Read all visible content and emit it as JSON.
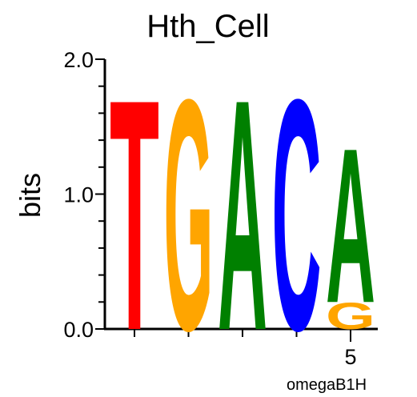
{
  "chart_data": {
    "type": "sequence-logo",
    "title": "Hth_Cell",
    "ylabel": "bits",
    "xlabel": "omegaB1H",
    "ylim": [
      0,
      2
    ],
    "y_tick_labels": [
      "0.0",
      "1.0",
      "2.0"
    ],
    "x_tick_labels": [
      {
        "position": 5,
        "label": "5"
      }
    ],
    "positions": [
      {
        "position": 1,
        "stack": [
          {
            "letter": "T",
            "bits": 1.76
          }
        ]
      },
      {
        "position": 2,
        "stack": [
          {
            "letter": "G",
            "bits": 1.76
          }
        ]
      },
      {
        "position": 3,
        "stack": [
          {
            "letter": "A",
            "bits": 1.76
          }
        ]
      },
      {
        "position": 4,
        "stack": [
          {
            "letter": "C",
            "bits": 1.76
          }
        ]
      },
      {
        "position": 5,
        "stack": [
          {
            "letter": "G",
            "bits": 0.2
          },
          {
            "letter": "A",
            "bits": 1.18
          }
        ]
      }
    ],
    "colors": {
      "A": "#008000",
      "C": "#0000ff",
      "G": "#ffa500",
      "T": "#ff0000"
    }
  }
}
